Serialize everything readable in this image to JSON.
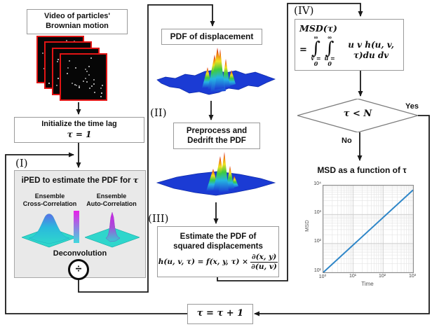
{
  "figure": {
    "type": "flowchart",
    "topic": "iPED algorithm: estimate MSD from video of Brownian motion"
  },
  "nodes": {
    "video": {
      "line1": "Video of particles'",
      "line2": "Brownian motion"
    },
    "initialize": {
      "line1": "Initialize the time lag",
      "math": "τ = 1"
    },
    "stage1": {
      "tag": "(I)",
      "title_text": "iPED to estimate the PDF for ",
      "title_math": "τ",
      "cross_line1": "Ensemble",
      "cross_line2": "Cross-Correlation",
      "auto_line1": "Ensemble",
      "auto_line2": "Auto-Correlation",
      "deconvolution": "Deconvolution",
      "divide": "÷"
    },
    "pdf_displacement": {
      "label": "PDF of displacement"
    },
    "stage2": {
      "tag": "(II)",
      "line1": "Preprocess and",
      "line2": "Dedrift the PDF"
    },
    "stage3": {
      "tag": "(III)",
      "line1": "Estimate the PDF of",
      "line2": "squared displacements",
      "formula_lhs": "h(u, v, τ) = f(x, y, τ) ×",
      "frac_num": "∂(x, y)",
      "frac_den": "∂(u, v)"
    },
    "stage4": {
      "tag": "(IV)",
      "lhs": "MSD(τ)",
      "equals": "=",
      "int1_sup": "∞",
      "int1_symbol": "∫",
      "int1_sub": "v = 0",
      "int2_sup": "∞",
      "int2_symbol": "∫",
      "int2_sub": "u = 0",
      "integrand": "u v h(u, v, τ)du dv"
    },
    "decision": {
      "condition": "τ < N",
      "yes": "Yes",
      "no": "No"
    },
    "msd_chart": {
      "title": "MSD as a function of τ",
      "ylabel": "MSD",
      "xlabel": "Time",
      "y_ticks": [
        "10⁴",
        "10³",
        "10²",
        "10¹"
      ],
      "x_ticks": [
        "10⁰",
        "10¹",
        "10²",
        "10³"
      ]
    },
    "tau_increment": {
      "math": "τ = τ + 1"
    }
  },
  "colors": {
    "frame_border": "#e11414",
    "frame_bg": "#060606",
    "stage1_bg": "#e9e9e9",
    "connector": "#1a1a1a",
    "jet_base_blue": "#1b3bd4",
    "cool_cyan": "#2fd6cc",
    "cool_magenta": "#d31fe4",
    "msd_line": "#2e86c8"
  },
  "chart_data": {
    "type": "line",
    "title": "MSD as a function of τ",
    "xlabel": "Time",
    "ylabel": "MSD",
    "xscale": "log",
    "yscale": "log",
    "xlim": [
      1,
      1000
    ],
    "ylim": [
      10,
      10000
    ],
    "series": [
      {
        "name": "MSD",
        "x": [
          1,
          1000
        ],
        "y": [
          10,
          7000
        ],
        "color": "#2e86c8"
      }
    ],
    "grid": true,
    "legend": false
  }
}
